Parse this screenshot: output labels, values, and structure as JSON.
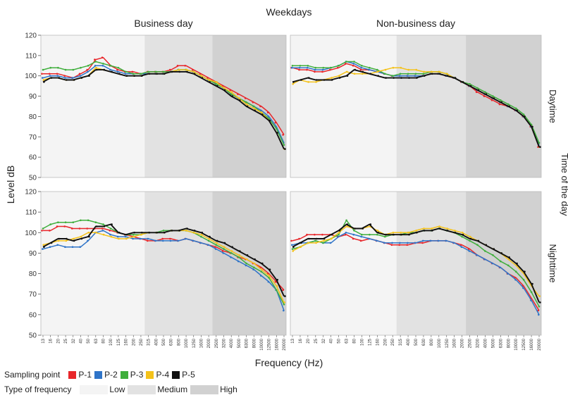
{
  "figure": {
    "title": "Weekdays",
    "col_titles": [
      "Business day",
      "Non-business day"
    ],
    "row_titles": [
      "Daytime",
      "Nighttime"
    ],
    "right_label": "Time of the day",
    "ylabel": "Level dB",
    "xlabel": "Frequency (Hz)"
  },
  "legend": {
    "sampling_title": "Sampling point",
    "sampling_items": [
      {
        "label": "P-1",
        "color": "#e8262a"
      },
      {
        "label": "P-2",
        "color": "#2f74c8"
      },
      {
        "label": "P-3",
        "color": "#3fae3c"
      },
      {
        "label": "P-4",
        "color": "#f4c21a"
      },
      {
        "label": "P-5",
        "color": "#111111"
      }
    ],
    "band_title": "Type of frequency",
    "band_items": [
      {
        "label": "Low",
        "color": "#f4f4f4"
      },
      {
        "label": "Medium",
        "color": "#e2e2e2"
      },
      {
        "label": "High",
        "color": "#d1d1d1"
      }
    ]
  },
  "chart_data": {
    "type": "line",
    "x": [
      "13",
      "16",
      "20",
      "25",
      "32",
      "40",
      "50",
      "63",
      "80",
      "100",
      "125",
      "160",
      "200",
      "250",
      "315",
      "400",
      "500",
      "630",
      "800",
      "1000",
      "1250",
      "1600",
      "2000",
      "2500",
      "3200",
      "4000",
      "5000",
      "6300",
      "8000",
      "10000",
      "12500",
      "16000",
      "20000"
    ],
    "ylim": [
      50,
      120
    ],
    "yticks": [
      50,
      60,
      70,
      80,
      90,
      100,
      110,
      120
    ],
    "bands": [
      {
        "name": "Low",
        "from": "13",
        "to": "250"
      },
      {
        "name": "Medium",
        "from": "315",
        "to": "2000"
      },
      {
        "name": "High",
        "from": "2500",
        "to": "20000"
      }
    ],
    "panels": [
      {
        "col": "Business day",
        "row": "Daytime",
        "series": [
          {
            "name": "P-1",
            "values": [
              101,
              101,
              101,
              100,
              99,
              101,
              103,
              108,
              109,
              105,
              103,
              102,
              102,
              101,
              102,
              102,
              102,
              103,
              105,
              105,
              103,
              101,
              99,
              97,
              95,
              93,
              91,
              89,
              87,
              85,
              82,
              77,
              71
            ]
          },
          {
            "name": "P-2",
            "values": [
              99,
              100,
              100,
              99,
              99,
              100,
              102,
              105,
              105,
              103,
              102,
              101,
              101,
              101,
              101,
              101,
              101,
              102,
              103,
              103,
              102,
              100,
              98,
              96,
              94,
              91,
              89,
              87,
              85,
              83,
              80,
              75,
              67
            ]
          },
          {
            "name": "P-3",
            "values": [
              103,
              104,
              104,
              103,
              103,
              104,
              105,
              107,
              106,
              105,
              104,
              102,
              101,
              101,
              102,
              102,
              102,
              102,
              103,
              103,
              102,
              100,
              98,
              96,
              94,
              91,
              89,
              87,
              85,
              82,
              79,
              74,
              66
            ]
          },
          {
            "name": "P-4",
            "values": [
              98,
              99,
              99,
              98,
              98,
              99,
              100,
              104,
              103,
              102,
              101,
              100,
              100,
              100,
              101,
              101,
              101,
              102,
              103,
              103,
              102,
              100,
              98,
              97,
              94,
              92,
              89,
              86,
              84,
              82,
              78,
              72,
              64
            ]
          },
          {
            "name": "P-5",
            "values": [
              97,
              99,
              99,
              98,
              98,
              99,
              100,
              103,
              103,
              102,
              101,
              100,
              100,
              100,
              101,
              101,
              101,
              102,
              102,
              102,
              101,
              99,
              97,
              95,
              93,
              90,
              88,
              85,
              83,
              81,
              78,
              72,
              64
            ]
          }
        ]
      },
      {
        "col": "Non-business day",
        "row": "Daytime",
        "series": [
          {
            "name": "P-1",
            "values": [
              104,
              103,
              103,
              102,
              102,
              103,
              104,
              106,
              105,
              103,
              103,
              102,
              101,
              100,
              100,
              100,
              100,
              100,
              101,
              101,
              100,
              99,
              97,
              95,
              92,
              90,
              88,
              86,
              85,
              83,
              80,
              75,
              65
            ]
          },
          {
            "name": "P-2",
            "values": [
              104,
              104,
              104,
              103,
              103,
              104,
              105,
              107,
              106,
              104,
              103,
              102,
              101,
              100,
              100,
              100,
              100,
              100,
              101,
              101,
              100,
              99,
              97,
              95,
              93,
              91,
              89,
              87,
              85,
              83,
              80,
              75,
              66
            ]
          },
          {
            "name": "P-3",
            "values": [
              105,
              105,
              105,
              104,
              104,
              104,
              105,
              107,
              107,
              105,
              104,
              103,
              101,
              100,
              101,
              101,
              101,
              101,
              102,
              102,
              101,
              99,
              97,
              96,
              94,
              92,
              90,
              88,
              86,
              84,
              81,
              76,
              67
            ]
          },
          {
            "name": "P-4",
            "values": [
              96,
              98,
              97,
              97,
              98,
              99,
              100,
              102,
              101,
              101,
              101,
              102,
              103,
              104,
              104,
              103,
              103,
              102,
              102,
              102,
              101,
              99,
              97,
              95,
              93,
              91,
              89,
              87,
              85,
              83,
              80,
              75,
              65
            ]
          },
          {
            "name": "P-5",
            "values": [
              97,
              98,
              99,
              98,
              98,
              98,
              99,
              100,
              103,
              102,
              101,
              100,
              99,
              99,
              99,
              99,
              99,
              100,
              101,
              101,
              100,
              99,
              97,
              95,
              93,
              91,
              89,
              87,
              85,
              83,
              80,
              75,
              65
            ]
          }
        ]
      },
      {
        "col": "Business day",
        "row": "Nighttime",
        "series": [
          {
            "name": "P-1",
            "values": [
              101,
              101,
              103,
              103,
              102,
              102,
              102,
              102,
              102,
              101,
              100,
              99,
              98,
              97,
              96,
              96,
              97,
              97,
              96,
              97,
              96,
              95,
              94,
              93,
              91,
              90,
              88,
              87,
              85,
              83,
              80,
              76,
              72
            ]
          },
          {
            "name": "P-2",
            "values": [
              92,
              93,
              94,
              93,
              93,
              93,
              96,
              100,
              101,
              99,
              98,
              98,
              97,
              97,
              97,
              96,
              96,
              96,
              96,
              97,
              96,
              95,
              94,
              92,
              90,
              88,
              86,
              84,
              82,
              79,
              76,
              72,
              62
            ]
          },
          {
            "name": "P-3",
            "values": [
              102,
              104,
              105,
              105,
              105,
              106,
              106,
              105,
              104,
              102,
              100,
              99,
              99,
              99,
              100,
              100,
              101,
              101,
              101,
              101,
              100,
              98,
              96,
              94,
              92,
              90,
              88,
              85,
              83,
              81,
              78,
              72,
              65
            ]
          },
          {
            "name": "P-4",
            "values": [
              94,
              95,
              96,
              96,
              97,
              98,
              100,
              100,
              99,
              98,
              97,
              97,
              98,
              99,
              100,
              100,
              100,
              101,
              101,
              101,
              100,
              99,
              97,
              95,
              93,
              91,
              89,
              87,
              85,
              82,
              79,
              74,
              66
            ]
          },
          {
            "name": "P-5",
            "values": [
              93,
              95,
              97,
              97,
              96,
              97,
              98,
              103,
              103,
              104,
              100,
              99,
              100,
              100,
              100,
              100,
              100,
              101,
              101,
              102,
              101,
              100,
              98,
              96,
              95,
              93,
              91,
              89,
              87,
              85,
              82,
              77,
              69
            ]
          }
        ]
      },
      {
        "col": "Non-business day",
        "row": "Nighttime",
        "series": [
          {
            "name": "P-1",
            "values": [
              96,
              97,
              99,
              99,
              99,
              99,
              98,
              99,
              97,
              96,
              97,
              96,
              95,
              94,
              94,
              94,
              95,
              95,
              96,
              96,
              96,
              95,
              94,
              92,
              89,
              87,
              85,
              83,
              80,
              78,
              74,
              68,
              62
            ]
          },
          {
            "name": "P-2",
            "values": [
              94,
              95,
              95,
              96,
              95,
              95,
              98,
              100,
              99,
              98,
              97,
              96,
              95,
              95,
              95,
              95,
              95,
              96,
              96,
              96,
              96,
              95,
              93,
              91,
              89,
              87,
              85,
              83,
              80,
              77,
              73,
              67,
              60
            ]
          },
          {
            "name": "P-3",
            "values": [
              92,
              93,
              95,
              96,
              95,
              97,
              99,
              106,
              101,
              99,
              99,
              99,
              98,
              99,
              99,
              100,
              100,
              101,
              101,
              102,
              101,
              100,
              98,
              96,
              94,
              91,
              89,
              86,
              84,
              81,
              77,
              71,
              64
            ]
          },
          {
            "name": "P-4",
            "values": [
              91,
              93,
              95,
              95,
              96,
              97,
              100,
              103,
              102,
              102,
              103,
              101,
              99,
              100,
              100,
              100,
              101,
              102,
              102,
              103,
              102,
              101,
              100,
              98,
              96,
              94,
              92,
              90,
              87,
              84,
              80,
              74,
              69
            ]
          },
          {
            "name": "P-5",
            "values": [
              93,
              95,
              97,
              97,
              97,
              99,
              101,
              104,
              102,
              102,
              104,
              100,
              99,
              99,
              99,
              99,
              100,
              101,
              101,
              102,
              101,
              100,
              99,
              97,
              96,
              94,
              92,
              90,
              88,
              85,
              81,
              75,
              66
            ]
          }
        ]
      }
    ]
  }
}
